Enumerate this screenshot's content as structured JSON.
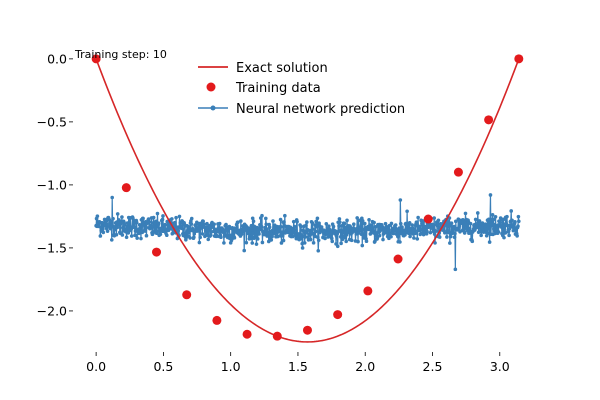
{
  "chart_data": {
    "type": "line",
    "annotation": "Training step: 10",
    "xlim": [
      -0.157,
      3.299
    ],
    "ylim": [
      -2.31,
      0.11
    ],
    "x_ticks": [
      0.0,
      0.5,
      1.0,
      1.5,
      2.0,
      2.5,
      3.0
    ],
    "x_tick_labels": [
      "0.0",
      "0.5",
      "1.0",
      "1.5",
      "2.0",
      "2.5",
      "3.0"
    ],
    "y_ticks": [
      0.0,
      -0.5,
      -1.0,
      -1.5,
      -2.0
    ],
    "y_tick_labels": [
      "0.0",
      "−0.5",
      "−1.0",
      "−1.5",
      "−2.0"
    ],
    "grid": false,
    "legend_position": "top-center",
    "colors": {
      "exact": "#d62728",
      "training": "#e31a1c",
      "prediction": "#3a7fb8"
    },
    "series": [
      {
        "name": "Exact solution",
        "kind": "line",
        "function": "quadratic",
        "x_range": [
          0.0,
          3.1416
        ],
        "anchor_points": [
          [
            0.0,
            0.0
          ],
          [
            1.3464,
            -2.2
          ],
          [
            3.1416,
            0.0
          ]
        ]
      },
      {
        "name": "Training data",
        "kind": "scatter",
        "x": [
          0.0,
          0.2244,
          0.4488,
          0.6732,
          0.8976,
          1.122,
          1.3464,
          1.5708,
          1.7952,
          2.0196,
          2.244,
          2.4684,
          2.6928,
          2.9172,
          3.1416
        ],
        "y": [
          0.0,
          -1.022,
          -1.533,
          -1.872,
          -2.075,
          -2.185,
          -2.2,
          -2.153,
          -2.029,
          -1.841,
          -1.588,
          -1.271,
          -0.899,
          -0.484,
          0.0
        ]
      },
      {
        "name": "Neural network prediction",
        "kind": "line-marker",
        "x_range": [
          0.0,
          3.1416
        ],
        "n_points": 1000,
        "mean_start": -1.31,
        "mean_end": -1.31,
        "mean_mid": -1.37,
        "noise_sd": 0.045,
        "spikes": [
          [
            0.12,
            -1.1
          ],
          [
            0.95,
            -1.46
          ],
          [
            1.55,
            -1.46
          ],
          [
            2.26,
            -1.12
          ],
          [
            2.52,
            -1.46
          ],
          [
            2.67,
            -1.67
          ],
          [
            2.93,
            -1.08
          ]
        ]
      }
    ]
  }
}
